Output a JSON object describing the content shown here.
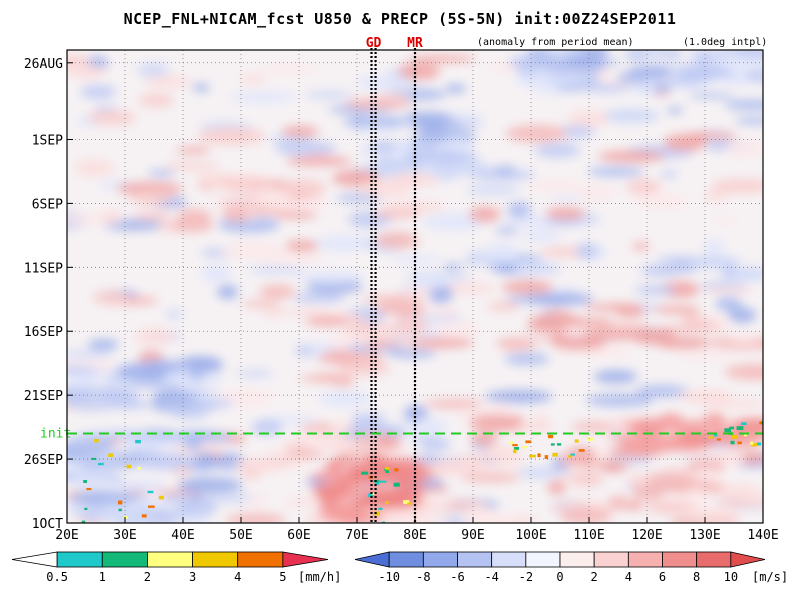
{
  "header": {
    "title": "NCEP_FNL+NICAM_fcst U850 & PRECP (5S-5N) init:00Z24SEP2011",
    "anomaly_note": "(anomaly from period mean)",
    "interp_note": "(1.0deg intpl)"
  },
  "chart_data": {
    "type": "heatmap",
    "title": "NCEP_FNL+NICAM_fcst U850 & PRECP (5S-5N) init:00Z24SEP2011",
    "x_axis": {
      "ticks": [
        "20E",
        "30E",
        "40E",
        "50E",
        "60E",
        "70E",
        "80E",
        "90E",
        "100E",
        "110E",
        "120E",
        "130E",
        "140E"
      ],
      "tick_values": [
        20,
        30,
        40,
        50,
        60,
        70,
        80,
        90,
        100,
        110,
        120,
        130,
        140
      ],
      "range": [
        20,
        140
      ],
      "grid": true
    },
    "y_axis": {
      "ticks": [
        "26AUG",
        "1SEP",
        "6SEP",
        "11SEP",
        "16SEP",
        "21SEP",
        "26SEP",
        "1OCT"
      ],
      "tick_days": [
        0,
        6,
        11,
        16,
        21,
        26,
        31,
        36
      ],
      "range_days": [
        -1,
        36
      ],
      "reversed": true,
      "grid": true
    },
    "init_line": {
      "label": "init",
      "day": 29,
      "color": "#22cc22"
    },
    "markers": [
      {
        "label": "GD",
        "lon": 72.5,
        "color": "#dd0000"
      },
      {
        "label": "GD",
        "lon": 73.2,
        "color": "#dd0000"
      },
      {
        "label": "MR",
        "lon": 80.0,
        "color": "#dd0000"
      }
    ],
    "precip_colorbar": {
      "unit": "[mm/h]",
      "levels": [
        "0.5",
        "1",
        "2",
        "3",
        "4",
        "5"
      ],
      "colors": [
        "#ffffff",
        "#1fc9c9",
        "#14b878",
        "#ffff80",
        "#f0c800",
        "#f07000",
        "#e83050"
      ]
    },
    "wind_colorbar": {
      "unit": "[m/s]",
      "levels": [
        "-10",
        "-8",
        "-6",
        "-4",
        "-2",
        "0",
        "2",
        "4",
        "6",
        "8",
        "10"
      ],
      "colors": [
        "#4a6ed6",
        "#6f8ee0",
        "#91a9ea",
        "#b4c3f2",
        "#d6defa",
        "#f3f5fe",
        "#fdeeee",
        "#fbd2d2",
        "#f6b0b0",
        "#f08e8e",
        "#e96c6c",
        "#e24e4e"
      ]
    }
  }
}
